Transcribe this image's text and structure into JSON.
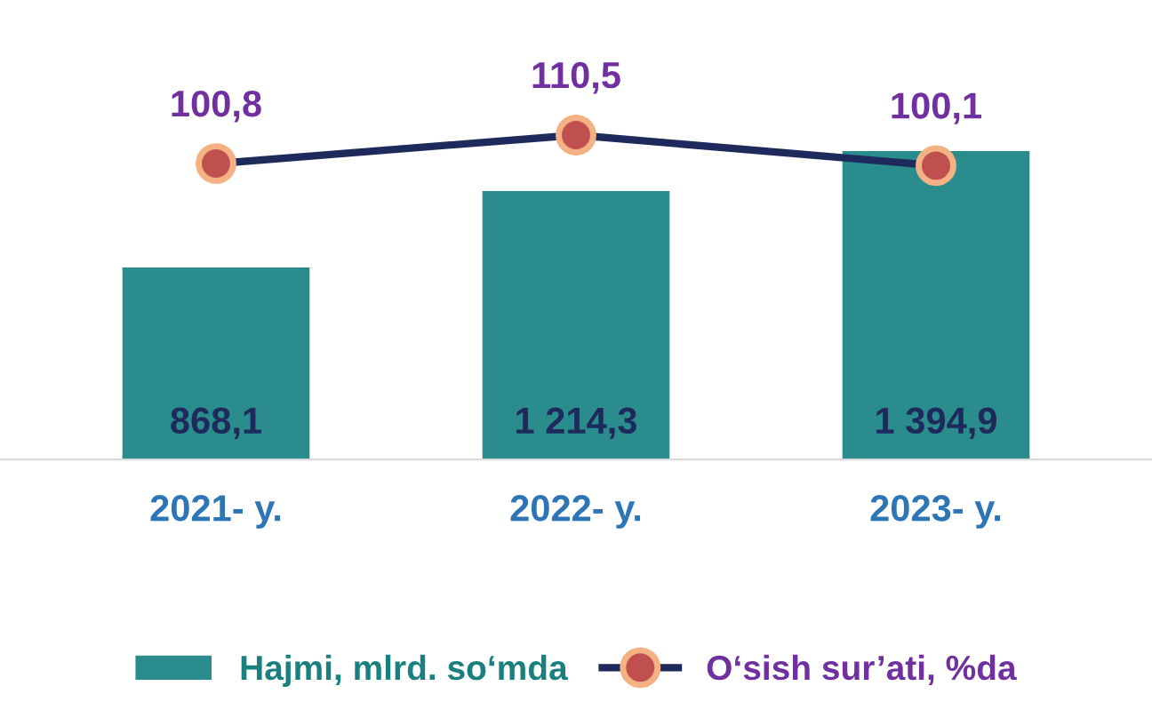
{
  "chart_data": {
    "type": "bar",
    "categories": [
      "2021- y.",
      "2022- y.",
      "2023- y."
    ],
    "series": [
      {
        "name": "Hajmi, mlrd. so‘mda",
        "color": "#2a8c8c",
        "values": [
          868.1,
          1214.3,
          1394.9
        ],
        "value_labels": [
          "868,1",
          "1 214,3",
          "1 394,9"
        ]
      },
      {
        "name": "O‘sish sur’ati, %da",
        "type": "line",
        "axis": "y2",
        "color": "#1f2a5c",
        "marker": "circle",
        "values": [
          100.8,
          110.5,
          100.1
        ],
        "value_labels": [
          "100,8",
          "110,5",
          "100,1"
        ]
      }
    ],
    "legend": "bottom",
    "grid": false,
    "tick_labels": "x"
  }
}
